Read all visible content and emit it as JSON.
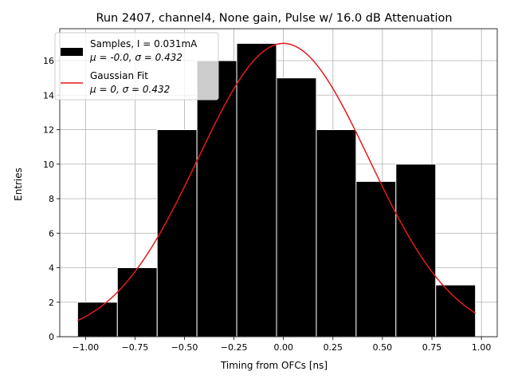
{
  "chart_data": {
    "type": "bar",
    "title": "Run 2407, channel4, None gain, Pulse w/ 16.0 dB Attenuation",
    "xlabel": "Timing from OFCs [ns]",
    "ylabel": "Entries",
    "xlim": [
      -1.13,
      1.08
    ],
    "ylim": [
      0,
      17.85
    ],
    "grid": true,
    "legend_placement": "top-left",
    "x_ticks": [
      -1.0,
      -0.75,
      -0.5,
      -0.25,
      0.0,
      0.25,
      0.5,
      0.75,
      1.0
    ],
    "x_tick_labels": [
      "−1.00",
      "−0.75",
      "−0.50",
      "−0.25",
      "0.00",
      "0.25",
      "0.50",
      "0.75",
      "1.00"
    ],
    "y_ticks": [
      0,
      2,
      4,
      6,
      8,
      10,
      12,
      14,
      16
    ],
    "y_tick_labels": [
      "0",
      "2",
      "4",
      "6",
      "8",
      "10",
      "12",
      "14",
      "16"
    ],
    "histogram": {
      "name": "Samples, I = 0.031mA",
      "stats": "μ = -0.0, σ = 0.432",
      "color": "#000000",
      "edge_color": "#ffffff",
      "bin_edges": [
        -1.04,
        -0.839,
        -0.638,
        -0.437,
        -0.236,
        -0.035,
        0.166,
        0.367,
        0.568,
        0.769,
        0.97
      ],
      "counts": [
        2,
        4,
        12,
        16,
        17,
        15,
        12,
        9,
        10,
        3
      ]
    },
    "fit": {
      "name": "Gaussian Fit",
      "stats": "μ = 0, σ = 0.432",
      "color": "#e41a1c",
      "mu": 0,
      "sigma": 0.432,
      "amplitude": 17,
      "x_range": [
        -1.04,
        0.97
      ]
    }
  }
}
